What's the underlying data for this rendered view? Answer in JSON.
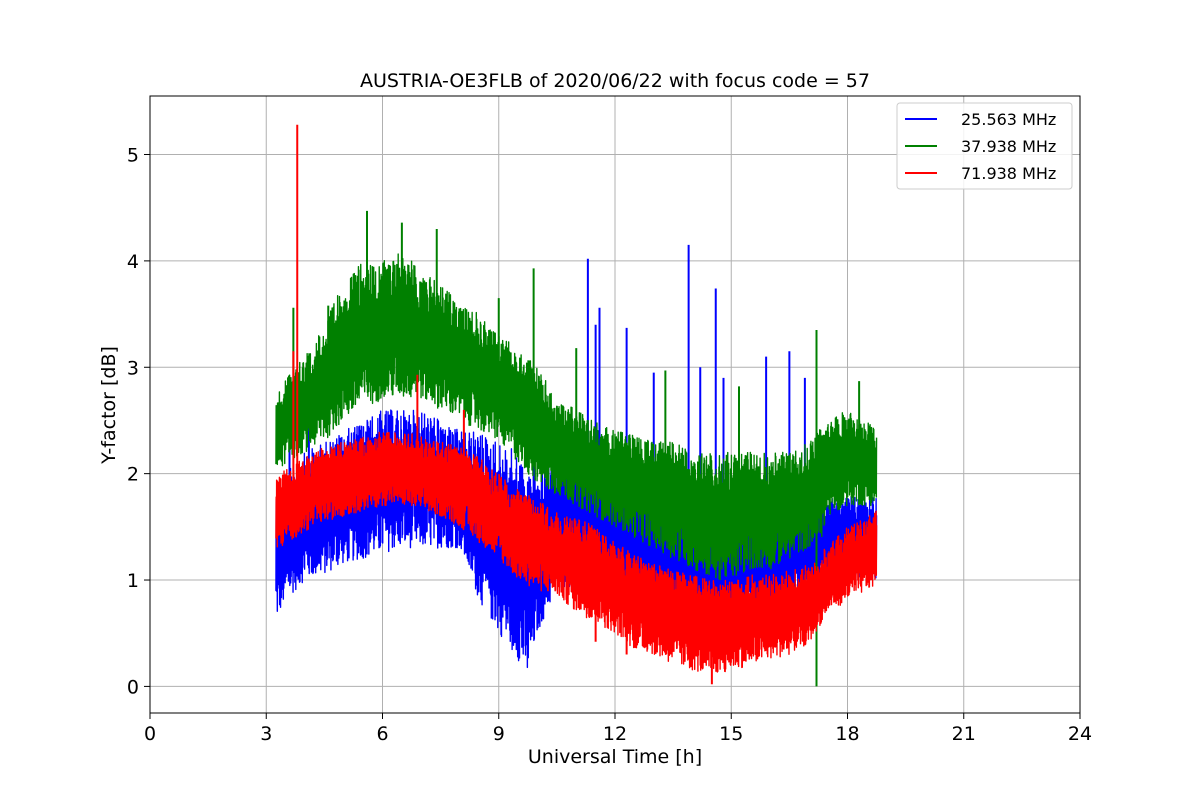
{
  "chart_data": {
    "type": "line",
    "title": "AUSTRIA-OE3FLB of 2020/06/22 with focus code = 57",
    "xlabel": "Universal Time [h]",
    "ylabel": "Y-factor [dB]",
    "xlim": [
      0,
      24
    ],
    "ylim": [
      -0.25,
      5.55
    ],
    "xticks": [
      0,
      3,
      6,
      9,
      12,
      15,
      18,
      21,
      24
    ],
    "xtick_labels": [
      "0",
      "3",
      "6",
      "9",
      "12",
      "15",
      "18",
      "21",
      "24"
    ],
    "yticks": [
      0,
      1,
      2,
      3,
      4,
      5
    ],
    "ytick_labels": [
      "0",
      "1",
      "2",
      "3",
      "4",
      "5"
    ],
    "grid": true,
    "legend_position": "top-right",
    "series": [
      {
        "name": "25.563 MHz",
        "color": "#0000ff",
        "x": [
          3.25,
          3.5,
          4.0,
          4.5,
          5.0,
          5.5,
          6.0,
          6.5,
          7.0,
          7.5,
          8.0,
          8.5,
          9.0,
          9.5,
          9.75,
          10.0,
          10.5,
          11.0,
          11.5,
          12.0,
          12.5,
          13.0,
          13.5,
          14.0,
          14.5,
          15.0,
          15.5,
          16.0,
          16.5,
          17.0,
          17.25,
          17.5,
          18.0,
          18.5,
          18.75
        ],
        "min": [
          0.6,
          0.8,
          1.0,
          1.05,
          1.15,
          1.2,
          1.25,
          1.3,
          1.3,
          1.3,
          1.3,
          0.8,
          0.5,
          0.25,
          0.05,
          0.5,
          0.9,
          0.95,
          0.85,
          0.8,
          0.75,
          0.7,
          0.6,
          0.5,
          0.4,
          0.45,
          0.6,
          0.7,
          0.75,
          0.9,
          0.9,
          1.0,
          1.05,
          1.0,
          1.0
        ],
        "max": [
          1.9,
          2.0,
          2.2,
          2.3,
          2.4,
          2.5,
          2.6,
          2.6,
          2.6,
          2.5,
          2.4,
          2.4,
          2.3,
          2.2,
          2.0,
          2.0,
          2.2,
          2.2,
          2.1,
          2.0,
          2.0,
          1.9,
          1.8,
          1.7,
          1.6,
          1.6,
          1.7,
          1.7,
          1.75,
          1.75,
          1.8,
          1.8,
          1.8,
          1.8,
          1.8
        ],
        "spikes": [
          [
            3.6,
            2.8
          ],
          [
            4.1,
            2.9
          ],
          [
            9.9,
            2.4
          ],
          [
            11.3,
            4.02
          ],
          [
            11.5,
            3.4
          ],
          [
            11.6,
            3.56
          ],
          [
            12.3,
            3.37
          ],
          [
            13.0,
            2.95
          ],
          [
            13.9,
            4.15
          ],
          [
            14.2,
            3.0
          ],
          [
            14.6,
            3.74
          ],
          [
            14.8,
            2.9
          ],
          [
            15.9,
            3.1
          ],
          [
            16.5,
            3.15
          ],
          [
            16.9,
            2.9
          ]
        ]
      },
      {
        "name": "37.938 MHz",
        "color": "#008000",
        "x": [
          3.25,
          3.5,
          4.0,
          4.5,
          5.0,
          5.5,
          6.0,
          6.5,
          7.0,
          7.5,
          8.0,
          8.5,
          9.0,
          9.5,
          10.0,
          10.5,
          11.0,
          11.5,
          12.0,
          12.5,
          13.0,
          13.5,
          14.0,
          14.5,
          15.0,
          15.5,
          16.0,
          16.5,
          17.0,
          17.25,
          17.5,
          18.0,
          18.5,
          18.75
        ],
        "min": [
          2.0,
          2.1,
          2.2,
          2.3,
          2.5,
          2.6,
          2.7,
          2.7,
          2.7,
          2.6,
          2.5,
          2.4,
          2.3,
          2.1,
          1.9,
          1.8,
          1.7,
          1.6,
          1.5,
          1.4,
          1.3,
          1.2,
          1.1,
          1.0,
          1.0,
          1.1,
          1.1,
          1.2,
          1.3,
          1.3,
          1.6,
          1.7,
          1.7,
          1.7
        ],
        "max": [
          2.7,
          2.9,
          3.1,
          3.4,
          3.8,
          4.0,
          4.0,
          4.1,
          3.9,
          3.8,
          3.6,
          3.5,
          3.3,
          3.2,
          3.0,
          2.7,
          2.6,
          2.5,
          2.4,
          2.4,
          2.3,
          2.3,
          2.2,
          2.2,
          2.2,
          2.2,
          2.2,
          2.2,
          2.3,
          2.4,
          2.5,
          2.6,
          2.5,
          2.4
        ],
        "spikes": [
          [
            3.7,
            3.56
          ],
          [
            4.6,
            3.58
          ],
          [
            5.6,
            4.47
          ],
          [
            6.5,
            4.36
          ],
          [
            7.4,
            4.3
          ],
          [
            9.0,
            3.65
          ],
          [
            9.9,
            3.93
          ],
          [
            11.0,
            3.18
          ],
          [
            13.3,
            2.97
          ],
          [
            15.2,
            2.82
          ],
          [
            17.2,
            3.35
          ],
          [
            18.3,
            2.87
          ],
          [
            17.2,
            0.0
          ]
        ]
      },
      {
        "name": "71.938 MHz",
        "color": "#ff0000",
        "x": [
          3.25,
          3.5,
          4.0,
          4.5,
          5.0,
          5.5,
          6.0,
          6.5,
          7.0,
          7.5,
          8.0,
          8.5,
          9.0,
          9.5,
          10.0,
          10.5,
          11.0,
          11.5,
          12.0,
          12.5,
          13.0,
          13.5,
          14.0,
          14.5,
          15.0,
          15.5,
          16.0,
          16.5,
          17.0,
          17.25,
          17.5,
          18.0,
          18.5,
          18.75
        ],
        "min": [
          1.25,
          1.35,
          1.45,
          1.55,
          1.6,
          1.65,
          1.7,
          1.7,
          1.65,
          1.6,
          1.5,
          1.35,
          1.2,
          1.0,
          0.9,
          0.85,
          0.7,
          0.6,
          0.5,
          0.35,
          0.3,
          0.2,
          0.15,
          0.1,
          0.15,
          0.2,
          0.25,
          0.3,
          0.4,
          0.55,
          0.7,
          0.8,
          0.9,
          0.95
        ],
        "max": [
          1.95,
          2.05,
          2.15,
          2.25,
          2.3,
          2.35,
          2.4,
          2.4,
          2.35,
          2.3,
          2.25,
          2.15,
          2.0,
          1.85,
          1.75,
          1.65,
          1.6,
          1.5,
          1.35,
          1.25,
          1.15,
          1.1,
          1.05,
          1.0,
          1.0,
          1.05,
          1.05,
          1.1,
          1.15,
          1.2,
          1.35,
          1.5,
          1.6,
          1.65
        ],
        "spikes": [
          [
            3.8,
            5.28
          ],
          [
            3.7,
            3.15
          ],
          [
            6.9,
            2.93
          ],
          [
            8.1,
            2.6
          ],
          [
            11.5,
            0.42
          ],
          [
            12.3,
            0.3
          ],
          [
            14.5,
            0.02
          ]
        ]
      }
    ]
  }
}
